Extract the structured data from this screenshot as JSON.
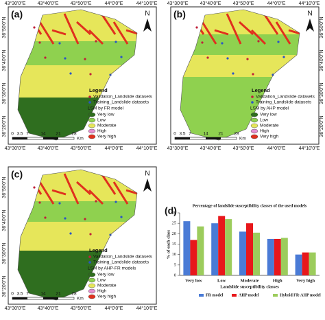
{
  "maps": {
    "panels": [
      {
        "label": "(a)",
        "model_legend": "LSM by FR model"
      },
      {
        "label": "(b)",
        "model_legend": "LSM by AHP model"
      },
      {
        "label": "(c)",
        "model_legend": "LSM by AHP-FR models"
      }
    ],
    "north": "N",
    "lon_labels": [
      "43°30'0\"E",
      "43°40'0\"E",
      "43°50'0\"E",
      "44°0'0\"E",
      "44°10'0\"E"
    ],
    "lat_labels": [
      "36°50'0\"N",
      "36°40'0\"N",
      "36°30'0\"N",
      "36°20'0\"N"
    ],
    "scale_labels": [
      "0",
      "3.5",
      "7",
      "14",
      "21",
      "28"
    ],
    "scale_unit": "Km",
    "legend": {
      "title": "Legend",
      "validation": "Validation_Landslide datasets",
      "training": "Training_Landslide datasets",
      "classes": [
        {
          "name": "Very low",
          "color": "#2f6e1f"
        },
        {
          "name": "Low",
          "color": "#8fd14f"
        },
        {
          "name": "Moderate",
          "color": "#e6e65a"
        },
        {
          "name": "High",
          "color": "#e590d0"
        },
        {
          "name": "Very high",
          "color": "#e0301e"
        }
      ]
    }
  },
  "chart_data": {
    "type": "bar",
    "panel_label": "(d)",
    "title": "Percentage of landslide susceptibility classes of the used models",
    "y_label": "% of each class",
    "x_label": "Landslide susceptibility classes",
    "categories": [
      "Very low",
      "Low",
      "Moderate",
      "High",
      "Very high"
    ],
    "series": [
      {
        "name": "FR model",
        "color": "#4a7bd6",
        "values": [
          26,
          25,
          21,
          17.5,
          10
        ]
      },
      {
        "name": "AHP model",
        "color": "#e8171b",
        "values": [
          17,
          28.5,
          25,
          17.5,
          11
        ]
      },
      {
        "name": "Hybrid FR-AHP model",
        "color": "#9ccc5c",
        "values": [
          23.5,
          27,
          20.5,
          18,
          11
        ]
      }
    ],
    "ylim": [
      0,
      30
    ],
    "yticks": [
      0,
      5,
      10,
      15,
      20,
      25,
      30
    ]
  }
}
